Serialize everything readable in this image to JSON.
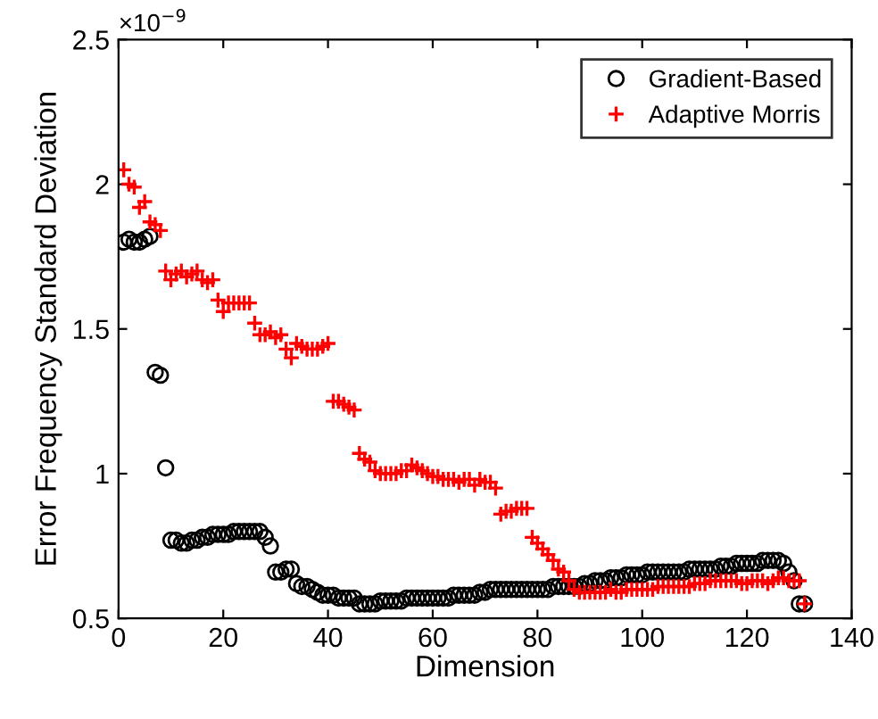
{
  "chart_data": {
    "type": "scatter",
    "xlabel": "Dimension",
    "ylabel": "Error Frequency Standard Deviation",
    "annotations": [
      "×10$^{−9}$"
    ],
    "x": [
      1,
      2,
      3,
      4,
      5,
      6,
      7,
      8,
      9,
      10,
      11,
      12,
      13,
      14,
      15,
      16,
      17,
      18,
      19,
      20,
      21,
      22,
      23,
      24,
      25,
      26,
      27,
      28,
      29,
      30,
      31,
      32,
      33,
      34,
      35,
      36,
      37,
      38,
      39,
      40,
      41,
      42,
      43,
      44,
      45,
      46,
      47,
      48,
      49,
      50,
      51,
      52,
      53,
      54,
      55,
      56,
      57,
      58,
      59,
      60,
      61,
      62,
      63,
      64,
      65,
      66,
      67,
      68,
      69,
      70,
      71,
      72,
      73,
      74,
      75,
      76,
      77,
      78,
      79,
      80,
      81,
      82,
      83,
      84,
      85,
      86,
      87,
      88,
      89,
      90,
      91,
      92,
      93,
      94,
      95,
      96,
      97,
      98,
      99,
      100,
      101,
      102,
      103,
      104,
      105,
      106,
      107,
      108,
      109,
      110,
      111,
      112,
      113,
      114,
      115,
      116,
      117,
      118,
      119,
      120,
      121,
      122,
      123,
      124,
      125,
      126,
      127,
      128,
      129,
      130,
      131
    ],
    "series": [
      {
        "name": "Gradient-Based",
        "color": "#000000",
        "marker": "circle",
        "values": [
          1.8,
          1.81,
          1.8,
          1.8,
          1.81,
          1.82,
          1.35,
          1.34,
          1.02,
          0.77,
          0.77,
          0.76,
          0.76,
          0.77,
          0.77,
          0.78,
          0.78,
          0.79,
          0.79,
          0.79,
          0.79,
          0.8,
          0.8,
          0.8,
          0.8,
          0.8,
          0.8,
          0.78,
          0.75,
          0.66,
          0.66,
          0.67,
          0.67,
          0.62,
          0.61,
          0.61,
          0.6,
          0.59,
          0.58,
          0.58,
          0.58,
          0.57,
          0.57,
          0.57,
          0.57,
          0.55,
          0.55,
          0.55,
          0.55,
          0.56,
          0.56,
          0.56,
          0.56,
          0.56,
          0.57,
          0.57,
          0.57,
          0.57,
          0.57,
          0.57,
          0.57,
          0.57,
          0.57,
          0.58,
          0.58,
          0.58,
          0.58,
          0.58,
          0.59,
          0.59,
          0.6,
          0.6,
          0.6,
          0.6,
          0.6,
          0.6,
          0.6,
          0.6,
          0.6,
          0.6,
          0.6,
          0.6,
          0.61,
          0.61,
          0.61,
          0.61,
          0.61,
          0.61,
          0.62,
          0.62,
          0.63,
          0.63,
          0.63,
          0.64,
          0.64,
          0.64,
          0.65,
          0.65,
          0.65,
          0.65,
          0.66,
          0.66,
          0.66,
          0.66,
          0.66,
          0.66,
          0.66,
          0.66,
          0.67,
          0.67,
          0.67,
          0.67,
          0.67,
          0.67,
          0.68,
          0.68,
          0.68,
          0.69,
          0.69,
          0.69,
          0.69,
          0.69,
          0.7,
          0.7,
          0.7,
          0.7,
          0.69,
          0.66,
          0.63,
          0.55,
          0.55
        ]
      },
      {
        "name": "Adaptive Morris",
        "color": "#ff0000",
        "marker": "cross",
        "values": [
          2.05,
          2.0,
          1.99,
          1.92,
          1.94,
          1.87,
          1.86,
          1.84,
          1.7,
          1.67,
          1.69,
          1.7,
          1.68,
          1.69,
          1.7,
          1.67,
          1.66,
          1.67,
          1.6,
          1.56,
          1.59,
          1.59,
          1.59,
          1.59,
          1.59,
          1.52,
          1.48,
          1.48,
          1.49,
          1.47,
          1.48,
          1.43,
          1.4,
          1.45,
          1.44,
          1.43,
          1.43,
          1.43,
          1.44,
          1.45,
          1.25,
          1.25,
          1.24,
          1.23,
          1.22,
          1.07,
          1.05,
          1.04,
          1.01,
          1.0,
          1.0,
          1.0,
          1.0,
          1.01,
          1.01,
          1.03,
          1.02,
          1.01,
          1.0,
          0.99,
          0.99,
          0.98,
          0.98,
          0.98,
          0.97,
          0.98,
          0.98,
          0.96,
          0.98,
          0.97,
          0.97,
          0.95,
          0.86,
          0.87,
          0.87,
          0.88,
          0.88,
          0.88,
          0.78,
          0.76,
          0.74,
          0.72,
          0.7,
          0.67,
          0.66,
          0.63,
          0.6,
          0.59,
          0.59,
          0.59,
          0.59,
          0.59,
          0.59,
          0.6,
          0.59,
          0.59,
          0.6,
          0.6,
          0.6,
          0.6,
          0.6,
          0.6,
          0.61,
          0.61,
          0.61,
          0.61,
          0.61,
          0.61,
          0.61,
          0.62,
          0.62,
          0.62,
          0.63,
          0.63,
          0.63,
          0.63,
          0.63,
          0.63,
          0.62,
          0.62,
          0.63,
          0.63,
          0.63,
          0.62,
          0.63,
          0.64,
          0.64,
          0.63,
          0.63,
          0.63,
          0.55
        ]
      }
    ],
    "xlim": [
      0,
      140
    ],
    "xticks": [
      0,
      20,
      40,
      60,
      80,
      100,
      120,
      140
    ],
    "ylim": [
      0.5,
      2.5
    ],
    "yticks": [
      0.5,
      1,
      1.5,
      2,
      2.5
    ],
    "legend": "top right"
  }
}
